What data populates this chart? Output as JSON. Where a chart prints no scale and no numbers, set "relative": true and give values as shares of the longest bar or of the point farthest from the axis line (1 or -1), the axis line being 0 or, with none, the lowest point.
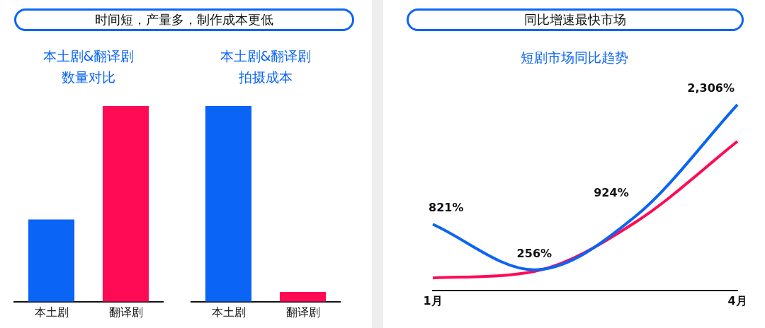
{
  "chart_data": [
    {
      "type": "bar",
      "title": "时间短，产量多，制作成本更低",
      "subtitle": "本土剧&翻译剧数量对比",
      "categories": [
        "本土剧",
        "翻译剧"
      ],
      "values": [
        0.42,
        1
      ],
      "colors": [
        "#0a64f5",
        "#ff0a54"
      ],
      "relative": true
    },
    {
      "type": "bar",
      "subtitle": "本土剧&翻译剧拍摄成本",
      "categories": [
        "本土剧",
        "翻译剧"
      ],
      "values": [
        1,
        0.05
      ],
      "colors": [
        "#0a64f5",
        "#ff0a54"
      ],
      "relative": true
    },
    {
      "type": "line",
      "title": "同比增速最快市场",
      "subtitle": "短剧市场同比趋势",
      "categories": [
        "1月",
        null,
        null,
        "4月"
      ],
      "tick_labels": "x",
      "series": [
        {
          "color": "#0a64f5",
          "values": [
            821,
            256,
            924,
            2306
          ],
          "value_labels": [
            "821%",
            "256%",
            "924%",
            "2,306%"
          ]
        },
        {
          "color": "#ff0a54",
          "values": [
            154,
            236,
            850,
            1850
          ]
        }
      ]
    }
  ]
}
